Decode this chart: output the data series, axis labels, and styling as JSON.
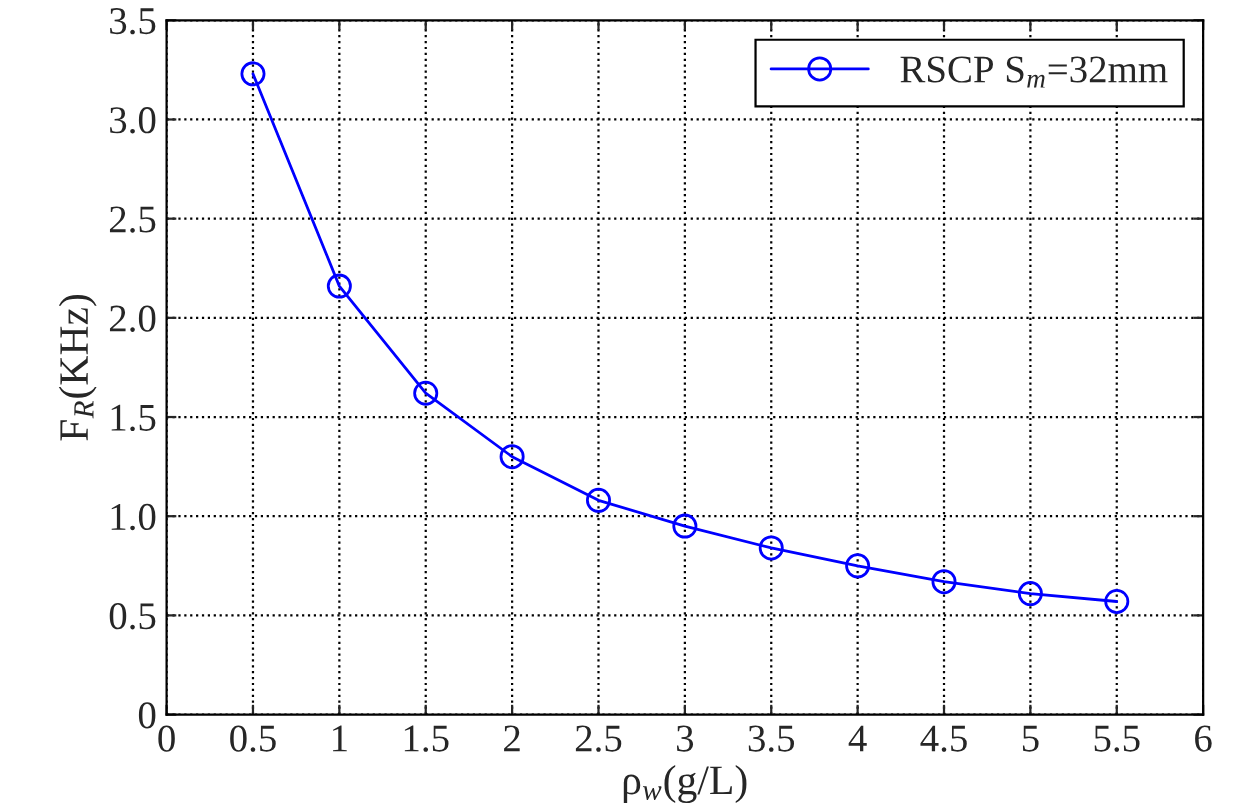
{
  "chart_data": {
    "type": "line",
    "xlabel": "ρ$_{w}$(g/L)",
    "ylabel": "F$_{R}$(KHz)",
    "x": [
      0.5,
      1,
      1.5,
      2,
      2.5,
      3,
      3.5,
      4,
      4.5,
      5,
      5.5
    ],
    "series": [
      {
        "name": "RSCP S$_{m}$=32mm",
        "color": "#0000ff",
        "values": [
          3.23,
          2.16,
          1.62,
          1.3,
          1.08,
          0.95,
          0.84,
          0.75,
          0.67,
          0.61,
          0.57
        ]
      }
    ],
    "xlim": [
      0,
      6
    ],
    "xticks": [
      0,
      0.5,
      1,
      1.5,
      2,
      2.5,
      3,
      3.5,
      4,
      4.5,
      5,
      5.5,
      6
    ],
    "ylim": [
      0,
      3.5
    ],
    "yticks": [
      0,
      0.5,
      {
        "value": 1,
        "label": "1.0"
      },
      1.5,
      {
        "value": 2,
        "label": "2.0"
      },
      2.5,
      {
        "value": 3,
        "label": "3.0"
      },
      3.5
    ],
    "grid": true,
    "legend": "top right",
    "marker": "circle",
    "line_style": "solid"
  }
}
